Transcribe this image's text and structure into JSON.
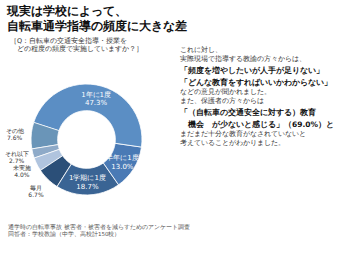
{
  "chart_data": {
    "type": "pie",
    "title": [
      "現実は学校によって、",
      "自転車通学指導の頻度に大きな差"
    ],
    "subtitle": [
      "［Q：自転車の交通安全指導・授業を",
      "　どの程度の頻度で実施していますか？］"
    ],
    "categories": [
      "1年に1度",
      "半年に1度",
      "1学期に1度",
      "毎月",
      "未実施",
      "それ以下",
      "その他"
    ],
    "values": [
      47.3,
      13.0,
      18.7,
      6.7,
      4.0,
      2.7,
      7.6
    ],
    "value_labels": [
      "47.3%",
      "13.0%",
      "18.7%",
      "6.7%",
      "4.0%",
      "2.7%",
      "7.6%"
    ],
    "colors": [
      "#5b8ec4",
      "#4a7ab5",
      "#3a6494",
      "#2b4f78",
      "#b0c4de",
      "#8eaac8",
      "#6a95b8"
    ],
    "data_labels": true,
    "annotations": [
      "これに対し、",
      "実際現場で指導する教諭の方々からは、",
      "「頻度を増やしたいが人手が足りない」",
      "「どんな教育をすればいいかわからない」",
      "などの意見が聞かれました。",
      "また、保護者の方々からは",
      "「（自転車の交通安全に対する）教育",
      "　機会　が少ないと感じる」（69.0%）と",
      "まだまだ十分な教育がなされていないと",
      "考えていることがわかりました。"
    ],
    "caption": [
      "通学時の自転車事故 被害者・被害者を減らすためのアンケート調査",
      "回答者：学校教諭（中学、高校計150校）"
    ]
  }
}
